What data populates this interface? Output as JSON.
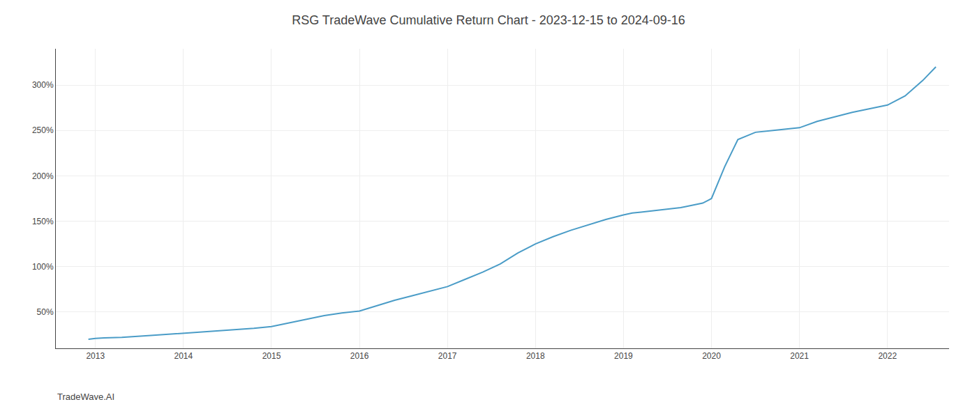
{
  "chart_data": {
    "type": "line",
    "title": "RSG TradeWave Cumulative Return Chart - 2023-12-15 to 2024-09-16",
    "annotations": [
      "TradeWave.AI"
    ],
    "x": [
      2012.92,
      2013.0,
      2013.1,
      2013.3,
      2013.6,
      2013.9,
      2014.0,
      2014.2,
      2014.5,
      2014.8,
      2015.0,
      2015.2,
      2015.4,
      2015.6,
      2015.8,
      2016.0,
      2016.2,
      2016.4,
      2016.6,
      2016.8,
      2017.0,
      2017.2,
      2017.4,
      2017.6,
      2017.8,
      2018.0,
      2018.2,
      2018.4,
      2018.6,
      2018.8,
      2019.0,
      2019.1,
      2019.2,
      2019.3,
      2019.4,
      2019.5,
      2019.6,
      2019.65,
      2019.7,
      2019.75,
      2019.8,
      2019.85,
      2019.9,
      2020.0,
      2020.15,
      2020.3,
      2020.5,
      2020.7,
      2020.9,
      2021.0,
      2021.2,
      2021.4,
      2021.6,
      2021.8,
      2022.0,
      2022.2,
      2022.4,
      2022.55
    ],
    "values": [
      20,
      21,
      21.5,
      22,
      24,
      26,
      27,
      28.5,
      30,
      32,
      34,
      38,
      42,
      46,
      49,
      51,
      57,
      63,
      68,
      73,
      78,
      86,
      94,
      103,
      115,
      125,
      133,
      140,
      146,
      152,
      157,
      159,
      160,
      161,
      162,
      163,
      164,
      165,
      166,
      167,
      168,
      169,
      170,
      175,
      210,
      240,
      248,
      250,
      252,
      253,
      260,
      265,
      270,
      274,
      278,
      288,
      305,
      320
    ],
    "color": "#4a9cc7",
    "xlim": [
      2012.55,
      2022.7
    ],
    "xticks": [
      2013,
      2014,
      2015,
      2016,
      2017,
      2018,
      2019,
      2020,
      2021,
      2022
    ],
    "ylim": [
      10,
      340
    ],
    "yticks": [
      {
        "value": 50,
        "label": "50%"
      },
      {
        "value": 100,
        "label": "100%"
      },
      {
        "value": 150,
        "label": "150%"
      },
      {
        "value": 200,
        "label": "200%"
      },
      {
        "value": 250,
        "label": "250%"
      },
      {
        "value": 300,
        "label": "300%"
      }
    ],
    "grid": true
  }
}
